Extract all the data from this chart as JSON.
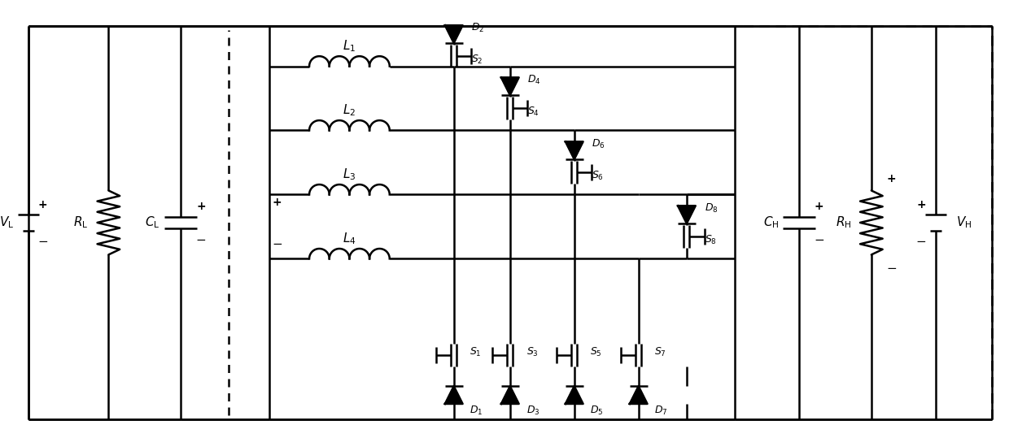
{
  "fig_width": 12.4,
  "fig_height": 5.39,
  "dpi": 100,
  "line_color": "black",
  "line_width": 1.8,
  "background_color": "white"
}
